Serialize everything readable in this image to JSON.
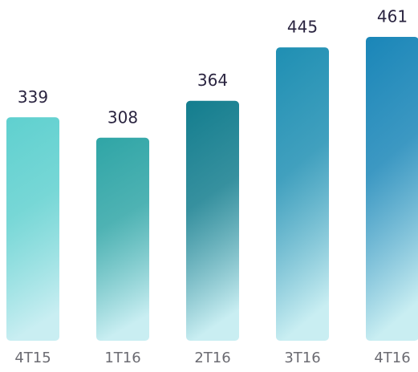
{
  "chart_data": {
    "type": "bar",
    "categories": [
      "4T15",
      "1T16",
      "2T16",
      "3T16",
      "4T16"
    ],
    "values": [
      339,
      308,
      364,
      445,
      461
    ],
    "colors": [
      "#5fd0cf",
      "#2fa5a6",
      "#137d8e",
      "#1f8fb3",
      "#1a86b8"
    ],
    "color_light": "#c9eef2"
  }
}
